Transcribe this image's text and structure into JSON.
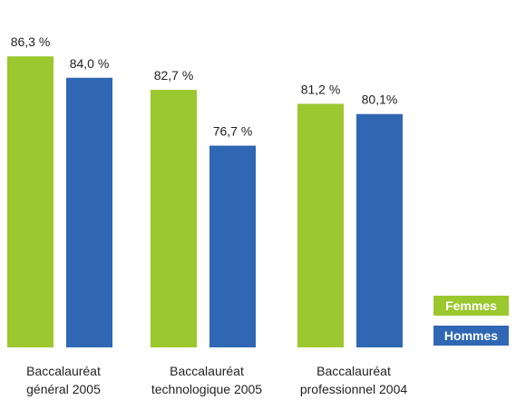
{
  "chart_data": {
    "type": "bar",
    "categories": [
      [
        "Baccalauréat",
        "général 2005"
      ],
      [
        "Baccalauréat",
        "technologique 2005"
      ],
      [
        "Baccalauréat",
        "professionnel 2004"
      ]
    ],
    "series": [
      {
        "name": "Femmes",
        "color": "#9bc82e",
        "values": [
          86.3,
          82.7,
          81.2
        ],
        "labels": [
          "86,3 %",
          "82,7 %",
          "81,2 %"
        ]
      },
      {
        "name": "Hommes",
        "color": "#2f67b4",
        "values": [
          84.0,
          76.7,
          80.1
        ],
        "labels": [
          "84,0 %",
          "76,7 %",
          "80,1%"
        ]
      }
    ],
    "ylim": [
      55,
      88
    ],
    "grid": false,
    "legend_position": "bottom-right"
  }
}
